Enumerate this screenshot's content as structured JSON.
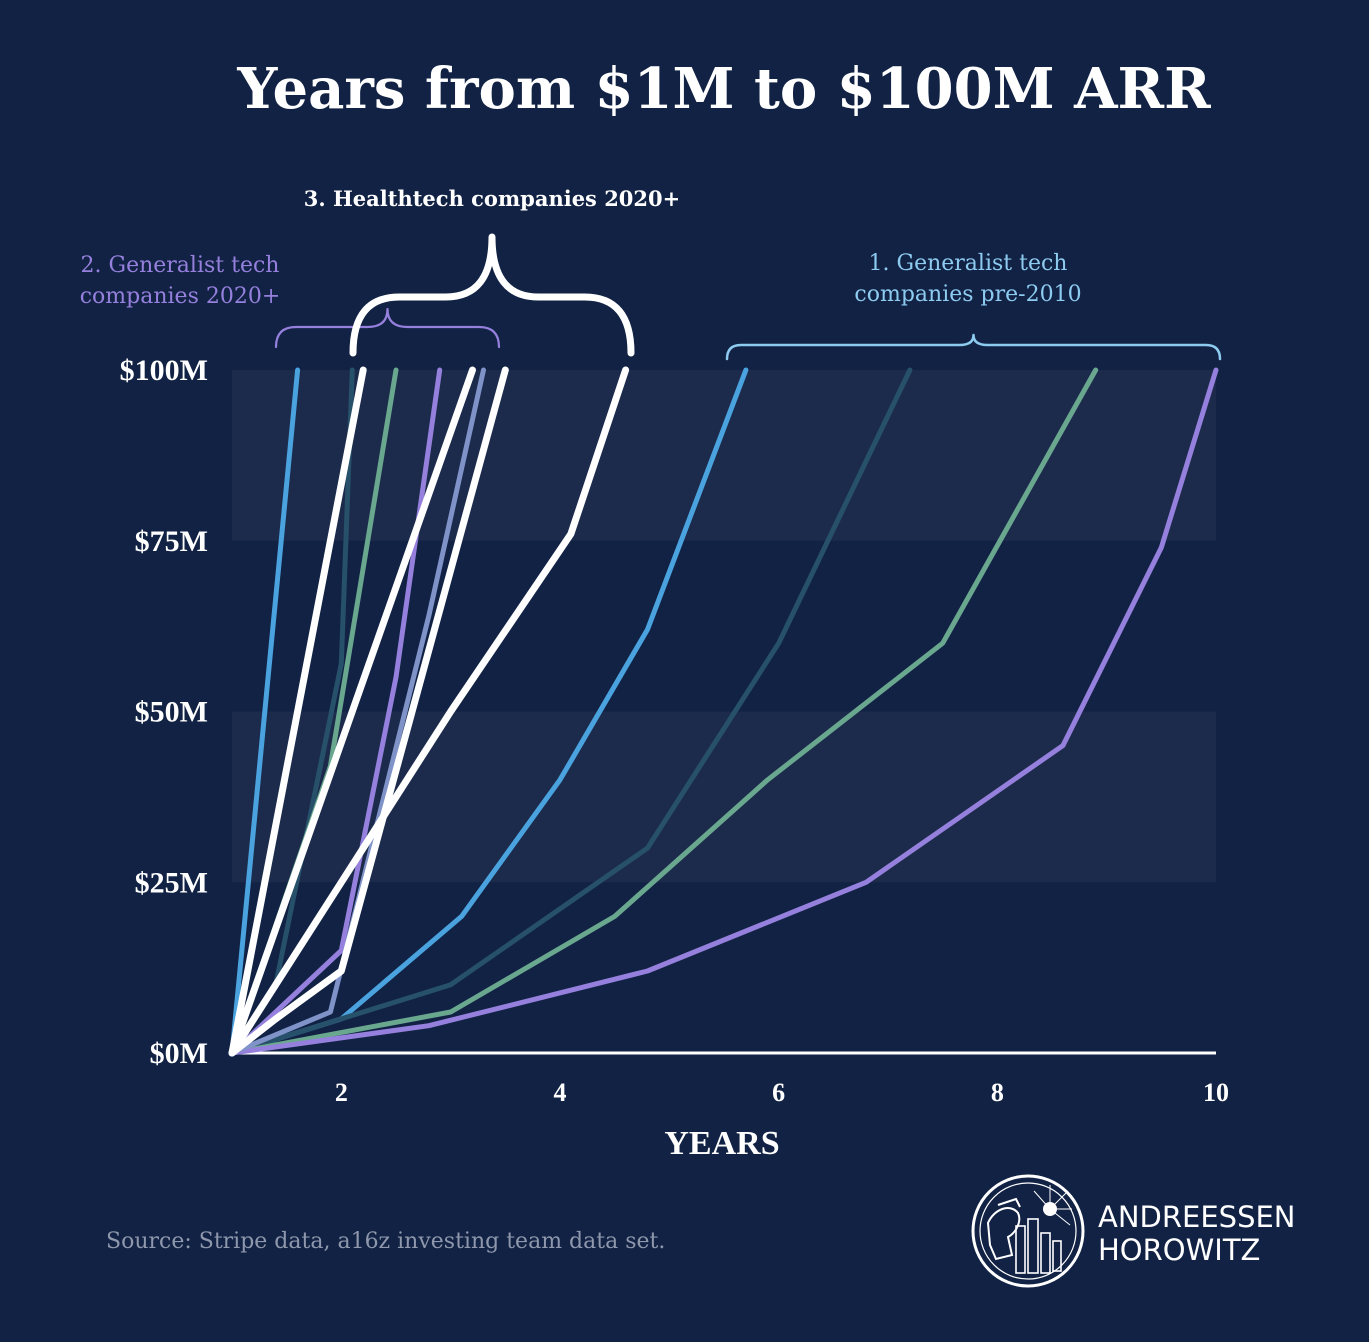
{
  "chart_data": {
    "type": "line",
    "title": "Years from $1M to $100M ARR",
    "xlabel": "YEARS",
    "ylabel": "",
    "xlim": [
      1,
      10
    ],
    "ylim": [
      0,
      100
    ],
    "x_ticks": [
      2,
      4,
      6,
      8,
      10
    ],
    "y_ticks": [
      {
        "value": 0,
        "label": "$0M"
      },
      {
        "value": 25,
        "label": "$25M"
      },
      {
        "value": 50,
        "label": "$50M"
      },
      {
        "value": 75,
        "label": "$75M"
      },
      {
        "value": 100,
        "label": "$100M"
      }
    ],
    "bands": [
      [
        25,
        50
      ],
      [
        75,
        100
      ]
    ],
    "series": [
      {
        "name": "Generalist tech pre-2010 A",
        "group": "generalist-pre-2010",
        "color": "#4aa3df",
        "points": [
          [
            1,
            0
          ],
          [
            2,
            5
          ],
          [
            3.1,
            20
          ],
          [
            4,
            40
          ],
          [
            4.8,
            62
          ],
          [
            5.7,
            100
          ]
        ]
      },
      {
        "name": "Generalist tech pre-2010 B",
        "group": "generalist-pre-2010",
        "color": "#27506a",
        "points": [
          [
            1,
            0
          ],
          [
            3,
            10
          ],
          [
            4.8,
            30
          ],
          [
            6,
            60
          ],
          [
            7.2,
            100
          ]
        ]
      },
      {
        "name": "Generalist tech pre-2010 C",
        "group": "generalist-pre-2010",
        "color": "#6aa78f",
        "points": [
          [
            1,
            0
          ],
          [
            3,
            6
          ],
          [
            4.5,
            20
          ],
          [
            5.9,
            40
          ],
          [
            7.5,
            60
          ],
          [
            8.9,
            100
          ]
        ]
      },
      {
        "name": "Generalist tech pre-2010 D",
        "group": "generalist-pre-2010",
        "color": "#9680dd",
        "points": [
          [
            1,
            0
          ],
          [
            2.8,
            4
          ],
          [
            4.8,
            12
          ],
          [
            6.8,
            25
          ],
          [
            8.6,
            45
          ],
          [
            9.5,
            74
          ],
          [
            10,
            100
          ]
        ]
      },
      {
        "name": "Generalist tech 2020+ A",
        "group": "generalist-2020",
        "color": "#4aa3df",
        "points": [
          [
            1,
            0
          ],
          [
            1.6,
            100
          ]
        ]
      },
      {
        "name": "Generalist tech 2020+ B",
        "group": "generalist-2020",
        "color": "#27506a",
        "points": [
          [
            1,
            0
          ],
          [
            1.4,
            10
          ],
          [
            2,
            57
          ],
          [
            2.1,
            100
          ]
        ]
      },
      {
        "name": "Generalist tech 2020+ C",
        "group": "generalist-2020",
        "color": "#6aa78f",
        "points": [
          [
            1,
            0
          ],
          [
            1.9,
            42
          ],
          [
            2.5,
            100
          ]
        ]
      },
      {
        "name": "Generalist tech 2020+ D",
        "group": "generalist-2020",
        "color": "#9680dd",
        "points": [
          [
            1,
            0
          ],
          [
            2,
            15
          ],
          [
            2.5,
            55
          ],
          [
            2.9,
            100
          ]
        ]
      },
      {
        "name": "Generalist tech 2020+ E",
        "group": "generalist-2020",
        "color": "#7f93c9",
        "points": [
          [
            1,
            0
          ],
          [
            1.9,
            6
          ],
          [
            2.8,
            64
          ],
          [
            3.3,
            100
          ]
        ]
      },
      {
        "name": "Healthtech 2020+ A",
        "group": "healthtech-2020",
        "color": "#ffffff",
        "points": [
          [
            1,
            0
          ],
          [
            2.2,
            100
          ]
        ]
      },
      {
        "name": "Healthtech 2020+ B",
        "group": "healthtech-2020",
        "color": "#ffffff",
        "points": [
          [
            1,
            0
          ],
          [
            3.2,
            100
          ]
        ]
      },
      {
        "name": "Healthtech 2020+ C",
        "group": "healthtech-2020",
        "color": "#ffffff",
        "points": [
          [
            1,
            0
          ],
          [
            1.4,
            5
          ],
          [
            2,
            12
          ],
          [
            3.5,
            100
          ]
        ]
      },
      {
        "name": "Healthtech 2020+ D",
        "group": "healthtech-2020",
        "color": "#ffffff",
        "points": [
          [
            1,
            0
          ],
          [
            3,
            50
          ],
          [
            4.1,
            76
          ],
          [
            4.6,
            100
          ]
        ]
      }
    ],
    "annotations": [
      {
        "id": "generalist-pre-2010",
        "lines": [
          "1. Generalist tech",
          "companies pre-2010"
        ],
        "color": "#8ecbf0",
        "x_range": [
          5.7,
          10
        ]
      },
      {
        "id": "generalist-2020",
        "lines": [
          "2. Generalist tech",
          "companies 2020+"
        ],
        "color": "#9680dd",
        "x_range": [
          1.4,
          3.5
        ]
      },
      {
        "id": "healthtech-2020",
        "lines": [
          "3. Healthtech companies 2020+"
        ],
        "color": "#ffffff",
        "x_range": [
          2.1,
          4.7
        ]
      }
    ]
  },
  "colors": {
    "background": "#112244",
    "band": "#1c2b4b",
    "axis": "#ffffff"
  },
  "footer": {
    "source": "Source: Stripe data, a16z investing team data set.",
    "brand_line1": "ANDREESSEN",
    "brand_line2": "HOROWITZ",
    "logo_icon": "a16z-seal-icon"
  }
}
